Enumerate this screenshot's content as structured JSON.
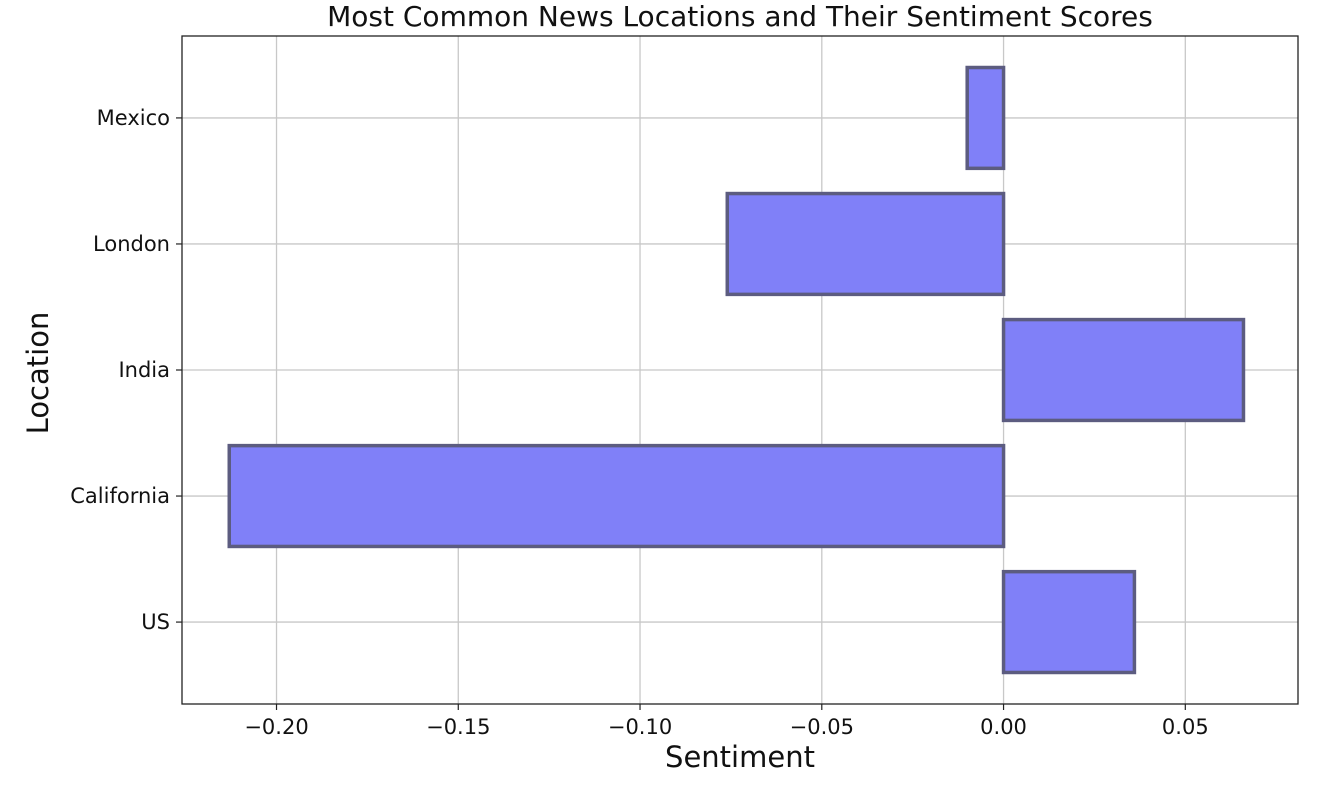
{
  "chart_data": {
    "type": "bar",
    "orientation": "horizontal",
    "title": "Most Common News Locations and Their Sentiment Scores",
    "xlabel": "Sentiment",
    "ylabel": "Location",
    "categories": [
      "US",
      "California",
      "India",
      "London",
      "Mexico"
    ],
    "values": [
      0.036,
      -0.213,
      0.066,
      -0.076,
      -0.01
    ],
    "xlim": [
      -0.226,
      0.081
    ],
    "xticks": [
      -0.2,
      -0.15,
      -0.1,
      -0.05,
      0.0,
      0.05
    ],
    "xtick_labels": [
      "−0.20",
      "−0.15",
      "−0.10",
      "−0.05",
      "0.00",
      "0.05"
    ],
    "grid": true,
    "colors": {
      "bar_fill": "#8080f8",
      "bar_edge": "#5c5c80",
      "grid": "#c8c8c8",
      "axes": "#222222"
    }
  }
}
